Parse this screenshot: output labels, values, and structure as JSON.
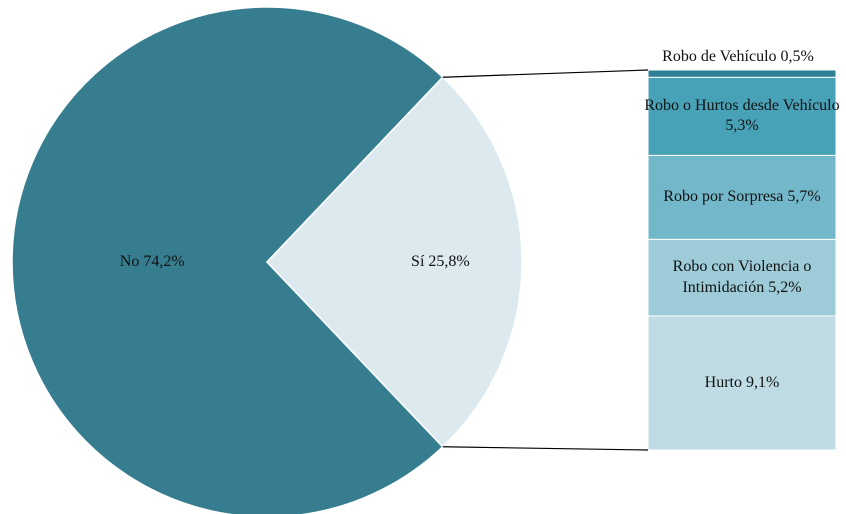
{
  "chart_data": {
    "type": "pie_of_bar",
    "categories": [
      "No",
      "Sí"
    ],
    "values": [
      74.2,
      25.8
    ],
    "value_labels": [
      "74,2%",
      "25,8%"
    ],
    "colors": [
      "#357d8f",
      "#dce9ef"
    ],
    "breakdown": {
      "categories": [
        "Robo de Vehículo",
        "Robo o Hurtos desde Vehículo",
        "Robo por Sorpresa",
        "Robo con Violencia o Intimidación",
        "Hurto"
      ],
      "values": [
        0.5,
        5.3,
        5.7,
        5.2,
        9.1
      ],
      "value_labels": [
        "0,5%",
        "5,3%",
        "5,7%",
        "5,2%",
        "9,1%"
      ],
      "colors": [
        "#2f7f94",
        "#48a2b7",
        "#72b8ca",
        "#9dcbd8",
        "#bfdce4"
      ]
    }
  }
}
